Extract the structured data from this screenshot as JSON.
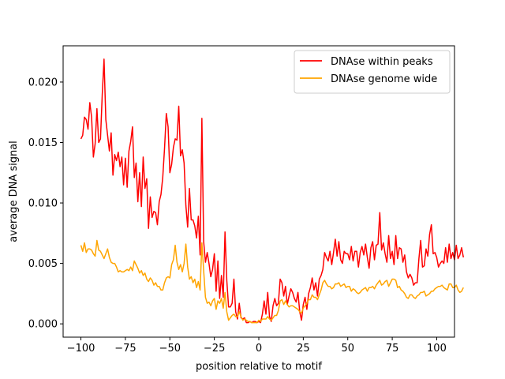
{
  "chart_data": {
    "type": "line",
    "title": "",
    "xlabel": "position relative to motif",
    "ylabel": "average DNA signal",
    "xlim": [
      -110,
      110
    ],
    "ylim": [
      -0.0011,
      0.023
    ],
    "x_ticks": [
      -100,
      -75,
      -50,
      -25,
      0,
      25,
      50,
      75,
      100
    ],
    "x_tick_labels": [
      "−100",
      "−75",
      "−50",
      "−25",
      "0",
      "25",
      "50",
      "75",
      "100"
    ],
    "y_ticks": [
      0.0,
      0.005,
      0.01,
      0.015,
      0.02
    ],
    "y_tick_labels": [
      "0.000",
      "0.005",
      "0.010",
      "0.015",
      "0.020"
    ],
    "grid": false,
    "legend_position": "top-right",
    "x_start": -100,
    "x_step": 1,
    "series": [
      {
        "name": "DNAse within peaks",
        "color": "#ff0000",
        "values": [
          0.0153,
          0.0156,
          0.0171,
          0.0169,
          0.0161,
          0.0183,
          0.0171,
          0.0138,
          0.0149,
          0.0178,
          0.015,
          0.0153,
          0.019,
          0.0219,
          0.0169,
          0.0156,
          0.0143,
          0.0158,
          0.0123,
          0.014,
          0.0135,
          0.0142,
          0.013,
          0.0138,
          0.0115,
          0.0137,
          0.0113,
          0.0143,
          0.0151,
          0.0163,
          0.0121,
          0.0133,
          0.0101,
          0.0125,
          0.0097,
          0.0138,
          0.0112,
          0.012,
          0.0079,
          0.0105,
          0.0088,
          0.0093,
          0.0092,
          0.0082,
          0.0101,
          0.0107,
          0.0121,
          0.0145,
          0.0174,
          0.0163,
          0.0125,
          0.0132,
          0.0146,
          0.0153,
          0.0152,
          0.018,
          0.0139,
          0.0144,
          0.0133,
          0.0098,
          0.008,
          0.0112,
          0.0086,
          0.0086,
          0.0081,
          0.0071,
          0.0089,
          0.0057,
          0.017,
          0.0068,
          0.0051,
          0.0059,
          0.005,
          0.0039,
          0.0045,
          0.0058,
          0.0027,
          0.0052,
          0.0021,
          0.004,
          0.0022,
          0.0076,
          0.0036,
          0.0014,
          0.0014,
          0.0017,
          0.0037,
          0.001,
          0.0004,
          0.0017,
          0.0005,
          0.0004,
          0.0005,
          0.0001,
          0.0001,
          0.0002,
          0.0001,
          0.0002,
          0.0002,
          0.0001,
          0.0002,
          0.0001,
          0.0008,
          0.0019,
          0.0008,
          0.0026,
          0.0006,
          0.0002,
          0.0015,
          0.0021,
          0.0015,
          0.0017,
          0.0037,
          0.0034,
          0.0023,
          0.0031,
          0.0016,
          0.0023,
          0.0029,
          0.0026,
          0.0021,
          0.0018,
          0.0026,
          0.001,
          0.0003,
          0.0016,
          0.0022,
          0.0012,
          0.0025,
          0.003,
          0.0038,
          0.0028,
          0.0034,
          0.0023,
          0.0037,
          0.004,
          0.0045,
          0.0059,
          0.0055,
          0.0052,
          0.006,
          0.0049,
          0.0059,
          0.007,
          0.0056,
          0.0068,
          0.0053,
          0.005,
          0.006,
          0.0058,
          0.0058,
          0.0053,
          0.0064,
          0.0052,
          0.006,
          0.006,
          0.0047,
          0.0059,
          0.0064,
          0.0057,
          0.0066,
          0.0055,
          0.0046,
          0.0063,
          0.0068,
          0.0053,
          0.0065,
          0.0066,
          0.0092,
          0.0061,
          0.0067,
          0.0058,
          0.0051,
          0.0073,
          0.0054,
          0.006,
          0.0049,
          0.0073,
          0.0054,
          0.0063,
          0.0062,
          0.0051,
          0.0057,
          0.0043,
          0.0038,
          0.0041,
          0.0038,
          0.0032,
          0.0034,
          0.0034,
          0.0054,
          0.0069,
          0.0047,
          0.0048,
          0.0062,
          0.0056,
          0.0074,
          0.0082,
          0.0058,
          0.0059,
          0.0055,
          0.0047,
          0.005,
          0.0052,
          0.005,
          0.0063,
          0.0051,
          0.0066,
          0.0054,
          0.0059,
          0.0053,
          0.0065,
          0.0054,
          0.0057,
          0.0063,
          0.0055
        ]
      },
      {
        "name": "DNAse genome wide",
        "color": "#ffa500",
        "values": [
          0.0065,
          0.006,
          0.0067,
          0.0059,
          0.0062,
          0.0062,
          0.0061,
          0.0058,
          0.0056,
          0.0069,
          0.0061,
          0.006,
          0.0057,
          0.0054,
          0.0058,
          0.0062,
          0.0055,
          0.0051,
          0.005,
          0.005,
          0.0047,
          0.0043,
          0.0044,
          0.0043,
          0.0043,
          0.0044,
          0.0045,
          0.0044,
          0.0047,
          0.0044,
          0.0052,
          0.0049,
          0.0046,
          0.0042,
          0.0044,
          0.004,
          0.0042,
          0.0037,
          0.0035,
          0.0038,
          0.0036,
          0.0032,
          0.0034,
          0.0031,
          0.0031,
          0.0028,
          0.0028,
          0.0034,
          0.0038,
          0.0039,
          0.0038,
          0.0049,
          0.0053,
          0.0065,
          0.0051,
          0.0045,
          0.0049,
          0.0043,
          0.005,
          0.0066,
          0.0047,
          0.0037,
          0.0039,
          0.0034,
          0.0037,
          0.003,
          0.0035,
          0.0028,
          0.0067,
          0.0044,
          0.0022,
          0.0017,
          0.0018,
          0.0015,
          0.0019,
          0.0021,
          0.0012,
          0.0019,
          0.0017,
          0.0021,
          0.0013,
          0.0026,
          0.001,
          0.0003,
          0.0005,
          0.0007,
          0.0008,
          0.0006,
          0.0006,
          0.001,
          0.0006,
          0.0003,
          0.0004,
          0.0003,
          0.0002,
          0.0002,
          0.0001,
          0.0001,
          0.0001,
          0.0001,
          0.0003,
          0.0002,
          0.0004,
          0.0004,
          0.0004,
          0.0006,
          0.0004,
          0.0003,
          0.0005,
          0.0007,
          0.0007,
          0.0011,
          0.0019,
          0.002,
          0.0016,
          0.0019,
          0.0016,
          0.0014,
          0.0015,
          0.0015,
          0.0014,
          0.0013,
          0.0012,
          0.001,
          0.0009,
          0.0013,
          0.0015,
          0.0017,
          0.002,
          0.002,
          0.0024,
          0.0022,
          0.0022,
          0.002,
          0.0024,
          0.0028,
          0.0034,
          0.0036,
          0.0033,
          0.0031,
          0.0031,
          0.0029,
          0.003,
          0.0033,
          0.0033,
          0.0034,
          0.0031,
          0.0032,
          0.0033,
          0.003,
          0.0031,
          0.0031,
          0.0027,
          0.0029,
          0.0028,
          0.0026,
          0.0025,
          0.0026,
          0.0028,
          0.0029,
          0.003,
          0.0027,
          0.003,
          0.003,
          0.0031,
          0.0029,
          0.0032,
          0.0034,
          0.0036,
          0.0032,
          0.0033,
          0.0035,
          0.0036,
          0.0031,
          0.0034,
          0.0037,
          0.0037,
          0.0036,
          0.003,
          0.0031,
          0.0028,
          0.0027,
          0.0025,
          0.0022,
          0.0021,
          0.0024,
          0.0024,
          0.0022,
          0.0021,
          0.0023,
          0.0024,
          0.0026,
          0.0026,
          0.0027,
          0.0023,
          0.0024,
          0.0025,
          0.0027,
          0.0027,
          0.0029,
          0.003,
          0.0031,
          0.0031,
          0.0032,
          0.003,
          0.0029,
          0.0028,
          0.0033,
          0.0033,
          0.003,
          0.003,
          0.0032,
          0.0028,
          0.0026,
          0.0027,
          0.003
        ]
      }
    ]
  }
}
